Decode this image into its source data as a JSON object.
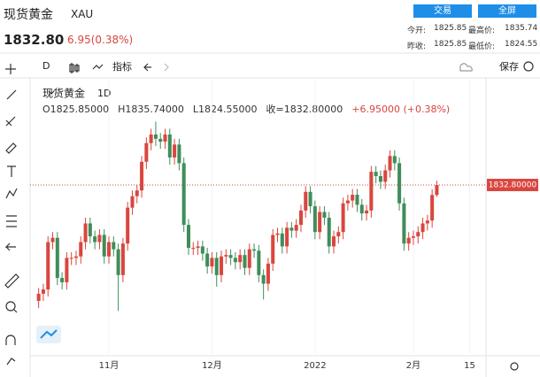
{
  "header": {
    "name": "现货黄金",
    "symbol": "XAU",
    "price": "1832.80",
    "change": "6.95(0.38%)",
    "buttons": [
      "交易",
      "全屏"
    ],
    "stats": [
      [
        "今开:",
        "1825.85",
        "最高价:",
        "1835.74"
      ],
      [
        "昨收:",
        "1825.85",
        "最低价:",
        "1824.55"
      ]
    ]
  },
  "toolbar": {
    "interval": "D",
    "indicators": "指标",
    "save": "保存"
  },
  "chart_data": {
    "type": "candlestick",
    "title": "现货黄金",
    "interval": "1D",
    "legend_text": [
      "O1825.85000",
      "H1835.74000",
      "L1824.55000",
      "收=1832.80000",
      "+6.95000 (+0.38%)"
    ],
    "categories": [
      null,
      null,
      null,
      null,
      null,
      null,
      null,
      null,
      null,
      null,
      null,
      null,
      null,
      null,
      null,
      "11月",
      null,
      null,
      null,
      null,
      null,
      null,
      null,
      null,
      null,
      null,
      null,
      null,
      null,
      null,
      null,
      null,
      null,
      null,
      null,
      null,
      null,
      "12月",
      null,
      null,
      null,
      null,
      null,
      null,
      null,
      null,
      null,
      null,
      null,
      null,
      null,
      null,
      null,
      null,
      null,
      null,
      null,
      null,
      null,
      "2022",
      null,
      null,
      null,
      null,
      null,
      null,
      null,
      null,
      null,
      null,
      null,
      null,
      null,
      null,
      null,
      null,
      null,
      null,
      null,
      null,
      "2月",
      null,
      null,
      null,
      null,
      null,
      null,
      null,
      null,
      null,
      null,
      null,
      "15",
      null,
      null,
      null
    ],
    "open": [
      1752,
      1757,
      1760,
      1793,
      1796,
      1768,
      1765,
      1782,
      1782,
      1783,
      1793,
      1806,
      1797,
      1793,
      1798,
      1783,
      1793,
      1788,
      1770,
      1792,
      1817,
      1825,
      1829,
      1849,
      1862,
      1868,
      1865,
      1863,
      1868,
      1852,
      1861,
      1848,
      1805,
      1789,
      1789,
      1790,
      1785,
      1776,
      1782,
      1770,
      1783,
      1784,
      1782,
      1779,
      1784,
      1775,
      1788,
      1787,
      1770,
      1764,
      1778,
      1798,
      1799,
      1790,
      1803,
      1801,
      1805,
      1815,
      1828,
      1818,
      1800,
      1814,
      1810,
      1790,
      1797,
      1800,
      1820,
      1822,
      1826,
      1819,
      1813,
      1815,
      1842,
      1839,
      1835,
      1843,
      1853,
      1848,
      1820,
      1792,
      1796,
      1797,
      1800,
      1806,
      1808,
      1825.85,
      null,
      null,
      null,
      null,
      null,
      null,
      null,
      null,
      null,
      null
    ],
    "high": [
      1761,
      1764,
      1797,
      1800,
      1800,
      1772,
      1786,
      1786,
      1787,
      1797,
      1810,
      1810,
      1801,
      1802,
      1802,
      1797,
      1797,
      1792,
      1796,
      1821,
      1829,
      1833,
      1853,
      1866,
      1872,
      1877,
      1869,
      1872,
      1872,
      1865,
      1865,
      1852,
      1809,
      1793,
      1794,
      1794,
      1789,
      1786,
      1786,
      1787,
      1788,
      1788,
      1786,
      1788,
      1788,
      1792,
      1792,
      1791,
      1774,
      1782,
      1802,
      1803,
      1803,
      1807,
      1807,
      1809,
      1819,
      1832,
      1832,
      1822,
      1818,
      1818,
      1814,
      1801,
      1804,
      1824,
      1826,
      1830,
      1830,
      1823,
      1819,
      1846,
      1846,
      1843,
      1847,
      1857,
      1857,
      1852,
      1824,
      1800,
      1801,
      1804,
      1810,
      1812,
      1829.85,
      1835.74,
      null,
      null,
      null,
      null,
      null,
      null,
      null,
      null,
      null,
      null
    ],
    "low": [
      1747,
      1752,
      1755,
      1788,
      1763,
      1760,
      1760,
      1777,
      1777,
      1778,
      1788,
      1792,
      1788,
      1788,
      1778,
      1778,
      1783,
      1745,
      1765,
      1787,
      1812,
      1820,
      1824,
      1844,
      1857,
      1860,
      1858,
      1858,
      1847,
      1847,
      1843,
      1800,
      1784,
      1784,
      1784,
      1780,
      1771,
      1771,
      1762,
      1765,
      1778,
      1777,
      1774,
      1774,
      1770,
      1770,
      1782,
      1765,
      1753,
      1759,
      1773,
      1793,
      1785,
      1785,
      1796,
      1796,
      1800,
      1810,
      1813,
      1795,
      1795,
      1805,
      1785,
      1785,
      1792,
      1795,
      1815,
      1817,
      1814,
      1808,
      1808,
      1810,
      1834,
      1830,
      1830,
      1838,
      1843,
      1815,
      1787,
      1787,
      1791,
      1792,
      1795,
      1801,
      1803,
      1824.55,
      null,
      null,
      null,
      null,
      null,
      null,
      null,
      null,
      null,
      null
    ],
    "close": [
      1757,
      1760,
      1793,
      1796,
      1768,
      1765,
      1782,
      1782,
      1783,
      1793,
      1806,
      1797,
      1793,
      1798,
      1783,
      1793,
      1788,
      1770,
      1792,
      1817,
      1825,
      1829,
      1849,
      1862,
      1868,
      1865,
      1863,
      1868,
      1852,
      1861,
      1848,
      1805,
      1789,
      1789,
      1790,
      1785,
      1776,
      1782,
      1770,
      1783,
      1784,
      1782,
      1779,
      1784,
      1775,
      1788,
      1787,
      1770,
      1764,
      1778,
      1798,
      1799,
      1790,
      1803,
      1801,
      1805,
      1815,
      1828,
      1818,
      1800,
      1814,
      1810,
      1790,
      1797,
      1800,
      1820,
      1822,
      1826,
      1819,
      1813,
      1815,
      1842,
      1839,
      1835,
      1843,
      1853,
      1848,
      1820,
      1792,
      1796,
      1797,
      1800,
      1806,
      1808,
      1825.85,
      1832.8,
      null,
      null,
      null,
      null,
      null,
      null,
      null,
      null,
      null,
      null
    ],
    "up_color": "#d9463e",
    "down_color": "#3f8d5a",
    "ylim": [
      1715,
      1905
    ],
    "grid": true,
    "last_price": 1832.8,
    "last_price_label": "1832.80000"
  }
}
